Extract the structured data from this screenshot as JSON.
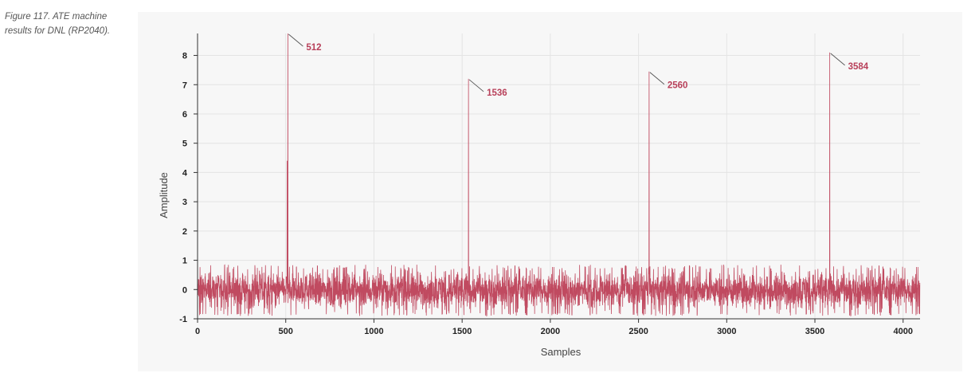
{
  "caption": "Figure 117. ATE machine results for DNL (RP2040).",
  "chart_data": {
    "type": "line",
    "title": "",
    "xlabel": "Samples",
    "ylabel": "Amplitude",
    "xlim": [
      0,
      4096
    ],
    "ylim": [
      -1,
      8.75
    ],
    "xticks": [
      0,
      500,
      1000,
      1500,
      2000,
      2500,
      3000,
      3500,
      4000
    ],
    "yticks": [
      -1,
      0,
      1,
      2,
      3,
      4,
      5,
      6,
      7,
      8
    ],
    "grid": true,
    "series_color": "#c04a60",
    "noise_band": [
      -0.9,
      0.85
    ],
    "series": [
      {
        "values_description_points": [
          {
            "x": 508,
            "y": 4.4
          },
          {
            "x": 512,
            "y": 8.75
          },
          {
            "x": 1536,
            "y": 7.2
          },
          {
            "x": 2560,
            "y": 7.45
          },
          {
            "x": 3584,
            "y": 8.1
          }
        ]
      }
    ],
    "annotations": [
      {
        "x": 512,
        "y": 8.75,
        "label": "512"
      },
      {
        "x": 1536,
        "y": 7.2,
        "label": "1536"
      },
      {
        "x": 2560,
        "y": 7.45,
        "label": "2560"
      },
      {
        "x": 3584,
        "y": 8.1,
        "label": "3584"
      }
    ]
  }
}
